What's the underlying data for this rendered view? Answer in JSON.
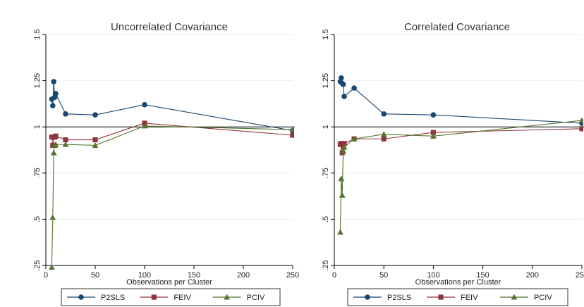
{
  "colors": {
    "p2sls": "#1a476f",
    "feiv": "#90353b",
    "pciv": "#55752f",
    "axis": "#000000",
    "grid": "#e6eef2",
    "background": "#ffffff"
  },
  "chart_data": [
    {
      "type": "line",
      "title": "Uncorrelated Covariance",
      "xlabel": "Observations per Cluster",
      "ylabel": "",
      "xlim": [
        0,
        250
      ],
      "ylim": [
        0.25,
        1.5
      ],
      "x_ticks": [
        0,
        50,
        100,
        150,
        200,
        250
      ],
      "x_tick_labels": [
        "0",
        "50",
        "100",
        "150",
        "200",
        "250"
      ],
      "y_ticks": [
        0.25,
        0.5,
        0.75,
        1,
        1.25,
        1.5
      ],
      "y_tick_labels": [
        ".25",
        ".5",
        ".75",
        "1",
        "1.25",
        "1.5"
      ],
      "reference_line": 1,
      "grid": true,
      "legend_position": "bottom",
      "series": [
        {
          "name": "P2SLS",
          "marker": "circle",
          "color_key": "p2sls",
          "x": [
            6,
            7,
            8,
            9,
            10,
            20,
            50,
            100,
            250
          ],
          "y": [
            1.15,
            1.115,
            1.245,
            1.16,
            1.18,
            1.07,
            1.065,
            1.12,
            0.98
          ]
        },
        {
          "name": "FEIV",
          "marker": "square",
          "color_key": "feiv",
          "x": [
            6,
            7,
            8,
            9,
            10,
            20,
            50,
            100,
            250
          ],
          "y": [
            0.945,
            0.9,
            0.945,
            0.945,
            0.95,
            0.93,
            0.93,
            1.02,
            0.955
          ]
        },
        {
          "name": "PCIV",
          "marker": "triangle",
          "color_key": "pciv",
          "x": [
            6,
            7,
            8,
            9,
            10,
            20,
            50,
            100,
            250
          ],
          "y": [
            0.24,
            0.51,
            0.86,
            0.9,
            0.905,
            0.905,
            0.9,
            1.005,
            0.985
          ]
        }
      ]
    },
    {
      "type": "line",
      "title": "Correlated Covariance",
      "xlabel": "Observations per Cluster",
      "ylabel": "",
      "xlim": [
        0,
        250
      ],
      "ylim": [
        0.25,
        1.5
      ],
      "x_ticks": [
        0,
        50,
        100,
        150,
        200,
        250
      ],
      "x_tick_labels": [
        "0",
        "50",
        "100",
        "150",
        "200",
        "250"
      ],
      "y_ticks": [
        0.25,
        0.5,
        0.75,
        1,
        1.25,
        1.5
      ],
      "y_tick_labels": [
        ".25",
        ".5",
        ".75",
        "1",
        "1.25",
        "1.5"
      ],
      "reference_line": 1,
      "grid": true,
      "legend_position": "bottom",
      "series": [
        {
          "name": "P2SLS",
          "marker": "circle",
          "color_key": "p2sls",
          "x": [
            6,
            7,
            8,
            9,
            10,
            20,
            50,
            100,
            250
          ],
          "y": [
            1.245,
            1.265,
            1.235,
            1.23,
            1.165,
            1.21,
            1.07,
            1.065,
            1.02
          ]
        },
        {
          "name": "FEIV",
          "marker": "square",
          "color_key": "feiv",
          "x": [
            6,
            7,
            8,
            9,
            10,
            20,
            50,
            100,
            250
          ],
          "y": [
            0.905,
            0.91,
            0.86,
            0.89,
            0.91,
            0.935,
            0.935,
            0.97,
            0.99
          ]
        },
        {
          "name": "PCIV",
          "marker": "triangle",
          "color_key": "pciv",
          "x": [
            6,
            7,
            8,
            9,
            10,
            20,
            50,
            100,
            250
          ],
          "y": [
            0.43,
            0.72,
            0.63,
            0.87,
            0.89,
            0.935,
            0.96,
            0.95,
            1.035
          ]
        }
      ]
    }
  ]
}
